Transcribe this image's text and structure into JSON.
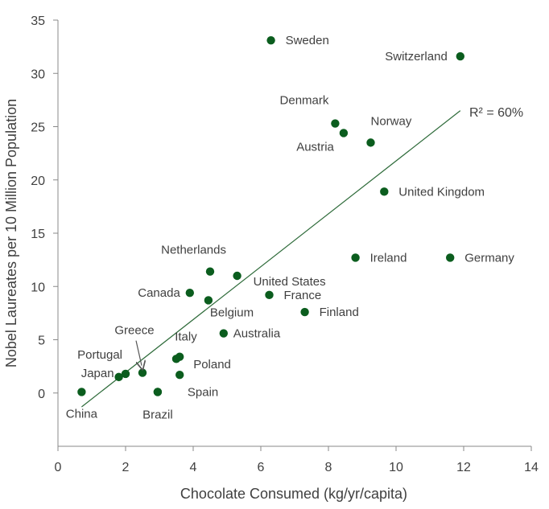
{
  "chart_data": {
    "type": "scatter",
    "title": "",
    "xlabel": "Chocolate Consumed (kg/yr/capita)",
    "ylabel": "Nobel Laureates per 10 Million Population",
    "xlim": [
      0,
      14
    ],
    "ylim": [
      -5,
      35
    ],
    "xticks": [
      "0",
      "2",
      "4",
      "6",
      "8",
      "10",
      "12",
      "14"
    ],
    "yticks": [
      "0",
      "5",
      "10",
      "15",
      "20",
      "25",
      "30",
      "35"
    ],
    "grid": false,
    "legend": "none",
    "point_color": "#0b5d1e",
    "trend_color": "#2e6b3a",
    "trendline": {
      "x": [
        0.7,
        11.9
      ],
      "y": [
        -1.3,
        26.5
      ],
      "label": "R² = 60%"
    },
    "points": [
      {
        "name": "Sweden",
        "x": 6.3,
        "y": 33.1
      },
      {
        "name": "Switzerland",
        "x": 11.9,
        "y": 31.6
      },
      {
        "name": "Denmark",
        "x": 8.2,
        "y": 25.3
      },
      {
        "name": "Austria",
        "x": 8.45,
        "y": 24.4
      },
      {
        "name": "Norway",
        "x": 9.25,
        "y": 23.5
      },
      {
        "name": "United Kingdom",
        "x": 9.65,
        "y": 18.9
      },
      {
        "name": "Ireland",
        "x": 8.8,
        "y": 12.7
      },
      {
        "name": "Germany",
        "x": 11.6,
        "y": 12.7
      },
      {
        "name": "Netherlands",
        "x": 4.5,
        "y": 11.4
      },
      {
        "name": "United States",
        "x": 5.3,
        "y": 11.0
      },
      {
        "name": "Canada",
        "x": 3.9,
        "y": 9.4
      },
      {
        "name": "Belgium",
        "x": 4.45,
        "y": 8.7
      },
      {
        "name": "France",
        "x": 6.25,
        "y": 9.2
      },
      {
        "name": "Finland",
        "x": 7.3,
        "y": 7.6
      },
      {
        "name": "Australia",
        "x": 4.9,
        "y": 5.6
      },
      {
        "name": "Italy",
        "x": 3.6,
        "y": 3.4
      },
      {
        "name": "",
        "x": 3.5,
        "y": 3.2
      },
      {
        "name": "Poland",
        "x": 3.6,
        "y": 1.7
      },
      {
        "name": "Greece",
        "x": 2.5,
        "y": 1.9
      },
      {
        "name": "Portugal",
        "x": 2.0,
        "y": 1.8
      },
      {
        "name": "Japan",
        "x": 1.8,
        "y": 1.5
      },
      {
        "name": "Spain",
        "x": 2.95,
        "y": 0.1
      },
      {
        "name": "Brazil",
        "x": 2.95,
        "y": 0.1
      },
      {
        "name": "China",
        "x": 0.7,
        "y": 0.1
      }
    ]
  }
}
